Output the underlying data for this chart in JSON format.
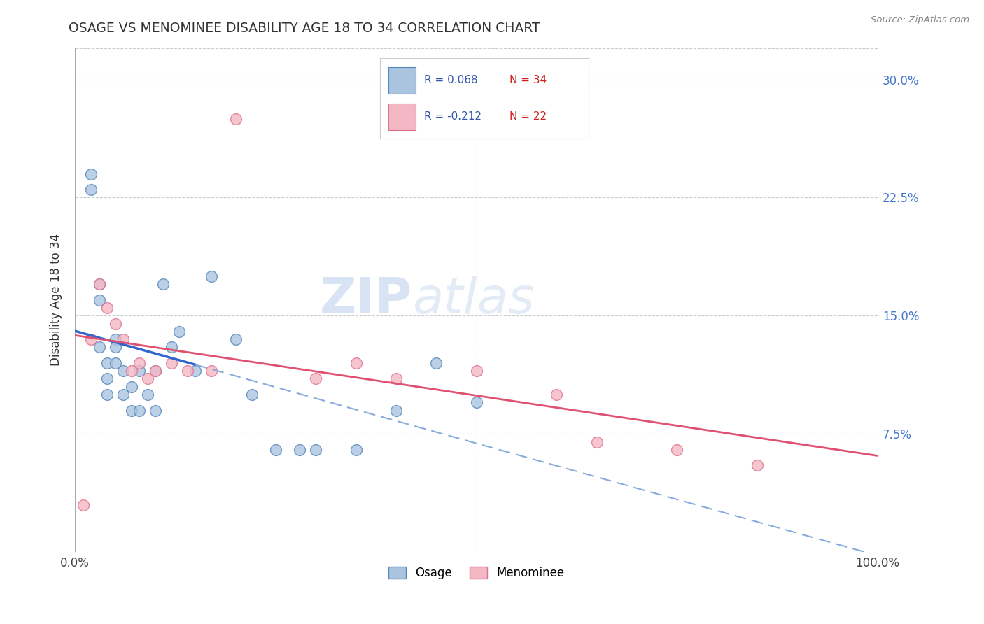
{
  "title": "OSAGE VS MENOMINEE DISABILITY AGE 18 TO 34 CORRELATION CHART",
  "source_text": "Source: ZipAtlas.com",
  "ylabel": "Disability Age 18 to 34",
  "xlim": [
    0.0,
    1.0
  ],
  "ylim": [
    0.0,
    0.32
  ],
  "ytick_values": [
    0.075,
    0.15,
    0.225,
    0.3
  ],
  "ytick_labels": [
    "7.5%",
    "15.0%",
    "22.5%",
    "30.0%"
  ],
  "background_color": "#ffffff",
  "grid_color": "#cccccc",
  "osage_color": "#aac4e0",
  "menominee_color": "#f4b8c4",
  "osage_edge_color": "#5588bb",
  "menominee_edge_color": "#e07090",
  "trend_blue": "#3366cc",
  "trend_blue_dashed": "#88aadd",
  "trend_pink": "#e05070",
  "legend_R_osage": "0.068",
  "legend_N_osage": "34",
  "legend_R_menominee": "-0.212",
  "legend_N_menominee": "22",
  "legend_label_osage": "Osage",
  "legend_label_menominee": "Menominee",
  "osage_x": [
    0.02,
    0.02,
    0.03,
    0.03,
    0.03,
    0.04,
    0.04,
    0.04,
    0.05,
    0.05,
    0.05,
    0.06,
    0.06,
    0.07,
    0.07,
    0.08,
    0.08,
    0.09,
    0.1,
    0.1,
    0.11,
    0.12,
    0.13,
    0.15,
    0.17,
    0.2,
    0.22,
    0.25,
    0.28,
    0.3,
    0.35,
    0.4,
    0.45,
    0.5
  ],
  "osage_y": [
    0.24,
    0.23,
    0.17,
    0.16,
    0.13,
    0.12,
    0.11,
    0.1,
    0.135,
    0.13,
    0.12,
    0.115,
    0.1,
    0.105,
    0.09,
    0.115,
    0.09,
    0.1,
    0.115,
    0.09,
    0.17,
    0.13,
    0.14,
    0.115,
    0.175,
    0.135,
    0.1,
    0.065,
    0.065,
    0.065,
    0.065,
    0.09,
    0.12,
    0.095
  ],
  "menominee_x": [
    0.01,
    0.02,
    0.03,
    0.04,
    0.05,
    0.06,
    0.07,
    0.08,
    0.09,
    0.1,
    0.12,
    0.14,
    0.17,
    0.2,
    0.3,
    0.35,
    0.4,
    0.5,
    0.6,
    0.65,
    0.75,
    0.85
  ],
  "menominee_y": [
    0.03,
    0.135,
    0.17,
    0.155,
    0.145,
    0.135,
    0.115,
    0.12,
    0.11,
    0.115,
    0.12,
    0.115,
    0.115,
    0.275,
    0.11,
    0.12,
    0.11,
    0.115,
    0.1,
    0.07,
    0.065,
    0.055
  ],
  "marker_size": 130
}
